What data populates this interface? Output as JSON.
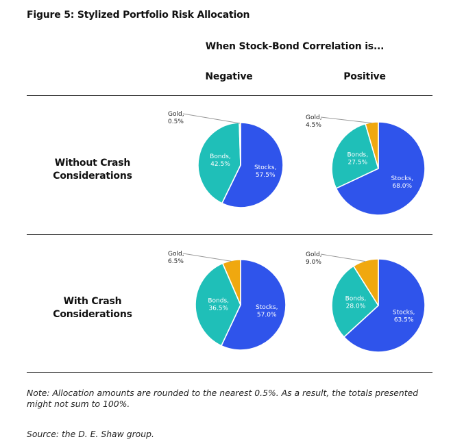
{
  "figure": {
    "title": "Figure 5: Stylized Portfolio Risk Allocation",
    "column_heading": "When Stock-Bond Correlation is...",
    "columns": [
      "Negative",
      "Positive"
    ],
    "rows": [
      [
        "Without Crash",
        "Considerations"
      ],
      [
        "With Crash",
        "Considerations"
      ]
    ],
    "note": "Note: Allocation amounts are rounded to the nearest 0.5%. As a result, the totals presented might not sum to 100%.",
    "source": "Source: the D. E. Shaw group."
  },
  "colors": {
    "Stocks": "#2f54eb",
    "Bonds": "#1fbfb8",
    "Gold": "#f0a80f",
    "rule": "#333333",
    "leader": "#999999"
  },
  "chart_data": [
    {
      "type": "pie",
      "row": "Without Crash Considerations",
      "column": "Negative",
      "series": [
        {
          "name": "Stocks",
          "value": 57.5,
          "label": "57.5%"
        },
        {
          "name": "Bonds",
          "value": 42.5,
          "label": "42.5%"
        },
        {
          "name": "Gold",
          "value": 0.5,
          "label": "0.5%"
        }
      ]
    },
    {
      "type": "pie",
      "row": "Without Crash Considerations",
      "column": "Positive",
      "series": [
        {
          "name": "Stocks",
          "value": 68.0,
          "label": "68.0%"
        },
        {
          "name": "Bonds",
          "value": 27.5,
          "label": "27.5%"
        },
        {
          "name": "Gold",
          "value": 4.5,
          "label": "4.5%"
        }
      ]
    },
    {
      "type": "pie",
      "row": "With Crash Considerations",
      "column": "Negative",
      "series": [
        {
          "name": "Stocks",
          "value": 57.0,
          "label": "57.0%"
        },
        {
          "name": "Bonds",
          "value": 36.5,
          "label": "36.5%"
        },
        {
          "name": "Gold",
          "value": 6.5,
          "label": "6.5%"
        }
      ]
    },
    {
      "type": "pie",
      "row": "With Crash Considerations",
      "column": "Positive",
      "series": [
        {
          "name": "Stocks",
          "value": 63.5,
          "label": "63.5%"
        },
        {
          "name": "Bonds",
          "value": 28.0,
          "label": "28.0%"
        },
        {
          "name": "Gold",
          "value": 9.0,
          "label": "9.0%"
        }
      ]
    }
  ]
}
